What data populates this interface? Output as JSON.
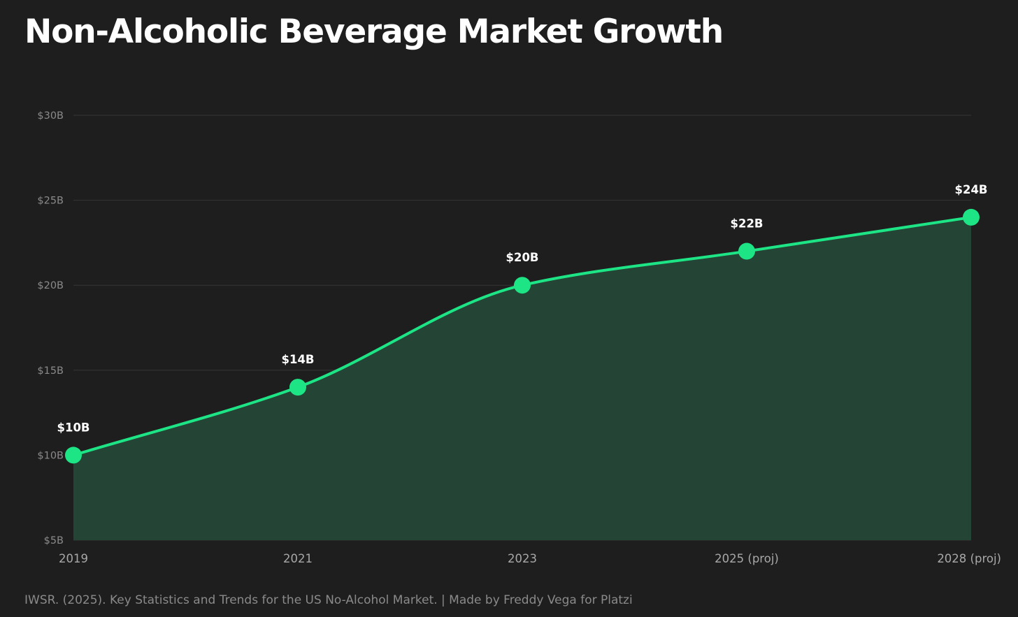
{
  "title": "Non-Alcoholic Beverage Market Growth",
  "source": "IWSR. (2025). Key Statistics and Trends for the US No-Alcohol Market. | Made by Freddy Vega for Platzi",
  "colors": {
    "background": "#1e1e1e",
    "line": "#1de586",
    "area": "#244536",
    "grid": "#353535",
    "tick_text": "#8a8a8a",
    "label_text": "#ffffff"
  },
  "chart_data": {
    "type": "area",
    "title": "Non-Alcoholic Beverage Market Growth",
    "xlabel": "",
    "ylabel": "",
    "categories": [
      "2019",
      "2021",
      "2023",
      "2025 (proj)",
      "2028 (proj)"
    ],
    "values": [
      10,
      14,
      20,
      22,
      24
    ],
    "value_labels": [
      "$10B",
      "$14B",
      "$20B",
      "$22B",
      "$24B"
    ],
    "ylim": [
      5,
      30
    ],
    "y_ticks": [
      5,
      10,
      15,
      20,
      25,
      30
    ],
    "y_tick_labels": [
      "$5B",
      "$10B",
      "$15B",
      "$20B",
      "$25B",
      "$30B"
    ],
    "grid": true,
    "legend": "none"
  }
}
